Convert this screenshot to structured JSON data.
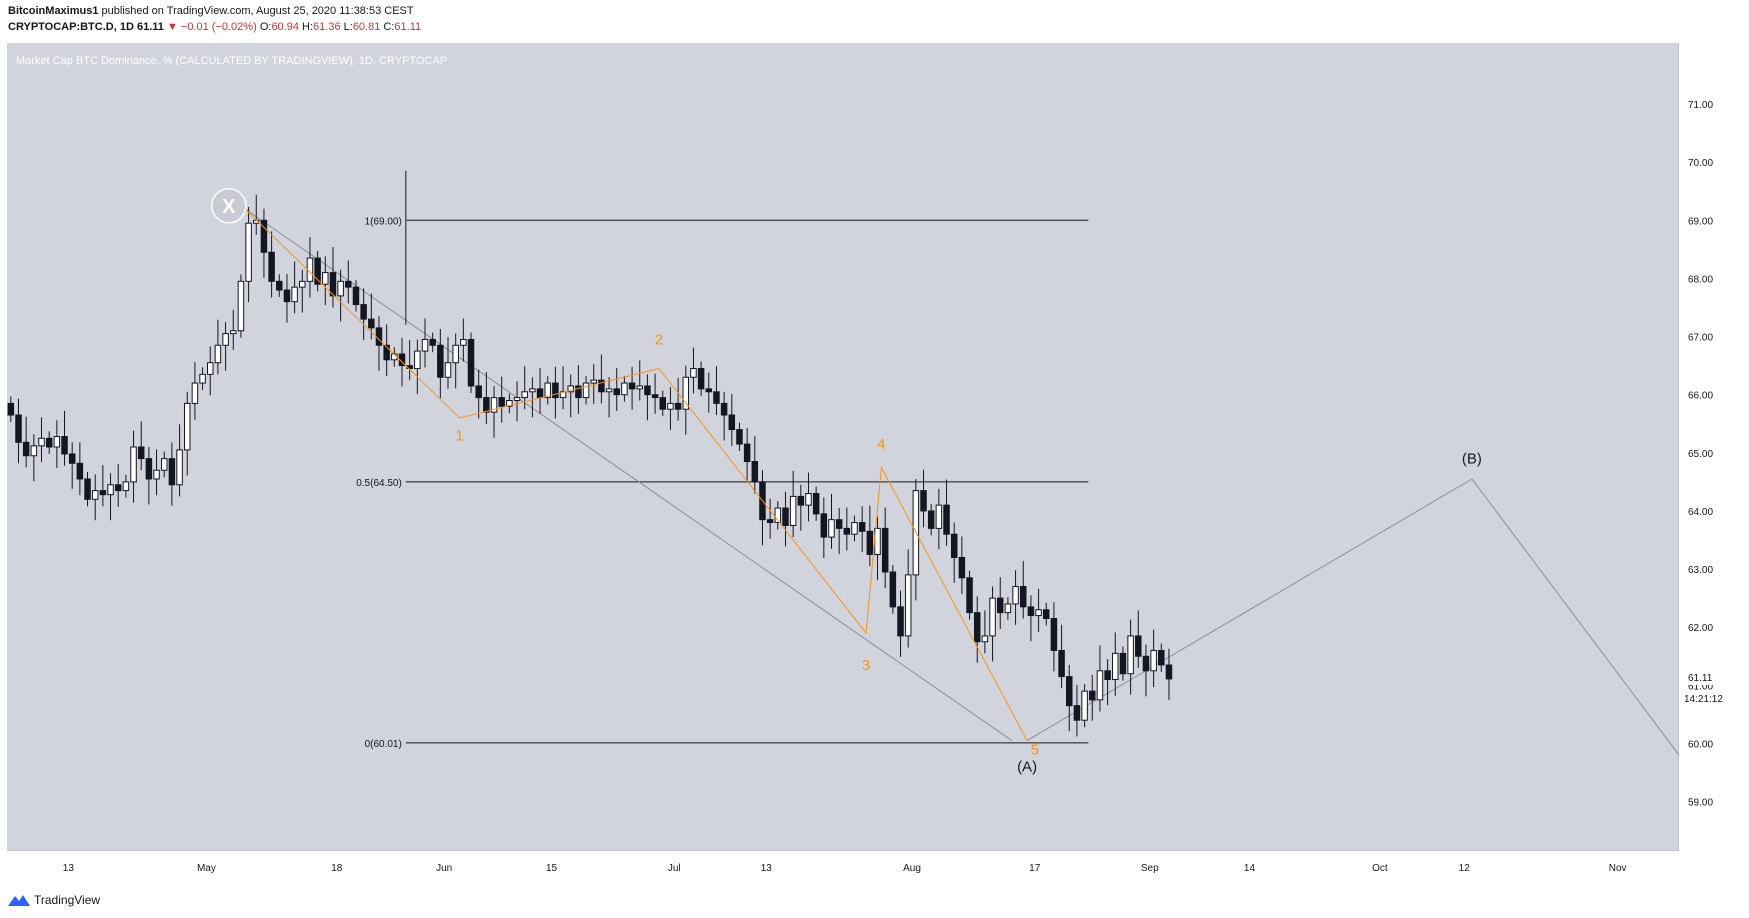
{
  "header": {
    "author": "BitcoinMaximus1",
    "published_text": "published on TradingView.com, August 25, 2020 11:38:53 CEST",
    "symbol_line": "CRYPTOCAP:BTC.D, 1D",
    "last_value": "61.11",
    "change_arrow": "▼",
    "change": "−0.01 (−0.02%)",
    "o_label": "O:",
    "o_value": "60.94",
    "h_label": "H:",
    "h_value": "61.36",
    "l_label": "L:",
    "l_value": "60.81",
    "c_label": "C:",
    "c_value": "61.11"
  },
  "footer": {
    "brand": "TradingView",
    "logo_icon": "tradingview-logo-icon"
  },
  "colors": {
    "plot_bg": "#d1d4dc",
    "up_body": "#ffffff",
    "down_body": "#131722",
    "wave_label": "#f7931a",
    "wave_line": "#f7931a",
    "trendline": "#8a8d96",
    "fib_line": "#131722",
    "price_label_bg": "#ffffff"
  },
  "chart_data": {
    "type": "candlestick",
    "title": "Market Cap BTC Dominance, % (CALCULATED BY TRADINGVIEW), 1D, CRYPTOCAP",
    "symbol": "CRYPTOCAP:BTC.D",
    "interval": "1D",
    "x_start": "2020-04-05",
    "x_end": "2020-11-09",
    "ylim": [
      58.15,
      72.05
    ],
    "y_ticks": [
      "59.00",
      "60.00",
      "61.00",
      "62.00",
      "63.00",
      "64.00",
      "65.00",
      "66.00",
      "67.00",
      "68.00",
      "69.00",
      "70.00",
      "71.00"
    ],
    "x_ticks": [
      {
        "label": "13",
        "date": "2020-04-13"
      },
      {
        "label": "May",
        "date": "2020-05-01"
      },
      {
        "label": "18",
        "date": "2020-05-18"
      },
      {
        "label": "Jun",
        "date": "2020-06-01"
      },
      {
        "label": "15",
        "date": "2020-06-15"
      },
      {
        "label": "Jul",
        "date": "2020-07-01"
      },
      {
        "label": "13",
        "date": "2020-07-13"
      },
      {
        "label": "Aug",
        "date": "2020-08-01"
      },
      {
        "label": "17",
        "date": "2020-08-17"
      },
      {
        "label": "Sep",
        "date": "2020-09-01"
      },
      {
        "label": "14",
        "date": "2020-09-14"
      },
      {
        "label": "Oct",
        "date": "2020-10-01"
      },
      {
        "label": "12",
        "date": "2020-10-12"
      },
      {
        "label": "Nov",
        "date": "2020-11-01"
      }
    ],
    "closes": [
      65.65,
      65.18,
      64.95,
      65.12,
      65.25,
      65.1,
      65.28,
      64.98,
      64.82,
      64.55,
      64.2,
      64.35,
      64.28,
      64.45,
      64.35,
      64.5,
      65.1,
      64.9,
      64.55,
      64.7,
      64.9,
      64.45,
      65.05,
      65.85,
      66.2,
      66.35,
      66.55,
      66.85,
      67.05,
      67.1,
      67.95,
      68.95,
      69.0,
      68.45,
      67.95,
      67.8,
      67.6,
      67.85,
      67.95,
      68.35,
      67.9,
      68.1,
      67.7,
      67.95,
      67.85,
      67.55,
      67.3,
      67.15,
      66.85,
      66.6,
      66.7,
      66.5,
      66.45,
      66.75,
      66.95,
      66.85,
      66.3,
      66.55,
      66.85,
      66.95,
      66.15,
      65.95,
      65.7,
      65.95,
      65.8,
      65.9,
      65.95,
      66.05,
      66.1,
      65.95,
      66.2,
      65.95,
      66.05,
      66.15,
      65.95,
      66.2,
      66.25,
      66.05,
      66.1,
      66.0,
      66.2,
      66.1,
      66.15,
      66.0,
      65.95,
      65.75,
      65.85,
      65.75,
      66.3,
      66.45,
      66.1,
      66.05,
      65.85,
      65.65,
      65.4,
      65.15,
      64.85,
      64.5,
      63.85,
      63.8,
      64.05,
      63.75,
      64.25,
      64.1,
      64.3,
      63.95,
      63.55,
      63.85,
      63.7,
      63.6,
      63.8,
      63.65,
      63.25,
      63.7,
      62.95,
      62.35,
      61.85,
      62.9,
      64.35,
      64.0,
      63.7,
      64.1,
      63.6,
      63.2,
      62.85,
      62.25,
      61.75,
      61.85,
      62.5,
      62.25,
      62.4,
      62.7,
      62.35,
      62.2,
      62.3,
      62.15,
      61.6,
      61.15,
      60.65,
      60.4,
      60.9,
      60.75,
      61.25,
      61.1,
      61.55,
      61.2,
      61.85,
      61.5,
      61.25,
      61.6,
      61.35,
      61.11
    ],
    "fib_levels": [
      {
        "label": "1(69.00)",
        "value": 69.0
      },
      {
        "label": "0.5(64.50)",
        "value": 64.5
      },
      {
        "label": "0(60.01)",
        "value": 60.01
      }
    ],
    "fib_range": {
      "start": "2020-05-27",
      "end": "2020-08-24"
    },
    "long_wick": {
      "date": "2020-05-27",
      "low": 67.2,
      "high": 69.85
    },
    "trendline_x_to_a": [
      {
        "date": "2020-05-06",
        "value": 69.2
      },
      {
        "date": "2020-08-14",
        "value": 60.05
      }
    ],
    "x_marker": {
      "label": "X",
      "date": "2020-05-06",
      "value": 69.25
    },
    "wave_labels": [
      {
        "label": "1",
        "date": "2020-06-03",
        "value": 65.3
      },
      {
        "label": "2",
        "date": "2020-06-29",
        "value": 66.95
      },
      {
        "label": "3",
        "date": "2020-07-26",
        "value": 61.35
      },
      {
        "label": "4",
        "date": "2020-07-28",
        "value": 65.15
      },
      {
        "label": "5",
        "date": "2020-08-17",
        "value": 59.9
      }
    ],
    "impulse_path": [
      {
        "date": "2020-05-06",
        "value": 69.2
      },
      {
        "date": "2020-06-03",
        "value": 65.6
      },
      {
        "date": "2020-06-29",
        "value": 66.45
      },
      {
        "date": "2020-07-26",
        "value": 61.9
      },
      {
        "date": "2020-07-28",
        "value": 64.75
      },
      {
        "date": "2020-08-16",
        "value": 60.05
      }
    ],
    "projection_path": [
      {
        "date": "2020-08-16",
        "value": 60.05
      },
      {
        "date": "2020-10-13",
        "value": 64.55
      },
      {
        "date": "2020-11-09",
        "value": 59.8
      }
    ],
    "wave_A": {
      "label": "(A)",
      "date": "2020-08-16",
      "value": 59.6
    },
    "wave_B": {
      "label": "(B)",
      "date": "2020-10-13",
      "value": 64.9
    },
    "last_price": {
      "value": "61.11",
      "countdown": "14:21:12"
    }
  }
}
